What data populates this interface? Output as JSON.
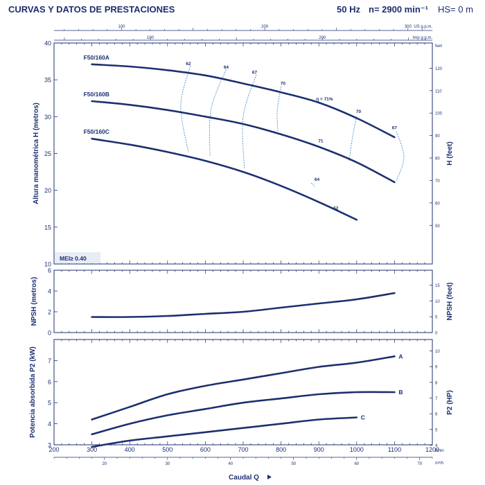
{
  "header": {
    "title": "CURVAS Y DATOS DE PRESTACIONES",
    "frequency": "50 Hz",
    "speed": "n= 2900 min⁻¹",
    "hs": "HS= 0 m"
  },
  "colors": {
    "curve": "#1c2f70",
    "eff": "#4a90c8",
    "frame": "#1c2f70"
  },
  "chart_data": [
    {
      "type": "line",
      "panel": "head",
      "ylabel": "Altura manométrica H (metros)",
      "ylabel_right": "H (feet)",
      "ylim": [
        10,
        40
      ],
      "yticks": [
        10,
        15,
        20,
        25,
        30,
        35,
        40
      ],
      "ylim_right": [
        50,
        125
      ],
      "yticks_right": [
        50,
        60,
        70,
        80,
        90,
        100,
        110,
        120
      ],
      "xlim": [
        200,
        1200
      ],
      "top_axis_us": {
        "label": "US g.p.m.",
        "ticks": [
          100,
          200,
          300
        ]
      },
      "top_axis_imp": {
        "label": "Imp g.p.m.",
        "ticks": [
          100,
          200
        ]
      },
      "annotation": "MEI≥ 0.40",
      "series": [
        {
          "name": "F50/160A",
          "x": [
            300,
            400,
            500,
            600,
            700,
            800,
            900,
            1000,
            1100
          ],
          "y": [
            37.1,
            36.8,
            36.3,
            35.6,
            34.5,
            33.3,
            31.9,
            29.8,
            27.2
          ]
        },
        {
          "name": "F50/160B",
          "x": [
            300,
            400,
            500,
            600,
            700,
            800,
            900,
            1000,
            1100
          ],
          "y": [
            32.1,
            31.6,
            30.9,
            30.0,
            29.0,
            27.6,
            25.9,
            23.8,
            21.1
          ]
        },
        {
          "name": "F50/160C",
          "x": [
            300,
            400,
            500,
            600,
            700,
            800,
            900,
            1000
          ],
          "y": [
            27.0,
            26.2,
            25.2,
            24.0,
            22.5,
            20.6,
            18.4,
            16.0
          ]
        }
      ],
      "efficiency": [
        {
          "label": "62",
          "x": 555,
          "y": 37.0
        },
        {
          "label": "64",
          "x": 655,
          "y": 36.5
        },
        {
          "label": "67",
          "x": 730,
          "y": 35.8
        },
        {
          "label": "70",
          "x": 805,
          "y": 34.3
        },
        {
          "label": "η = 71%",
          "x": 915,
          "y": 32.2
        },
        {
          "label": "70",
          "x": 1005,
          "y": 30.5
        },
        {
          "label": "67",
          "x": 1100,
          "y": 28.3
        },
        {
          "label": "71",
          "x": 905,
          "y": 26.5
        },
        {
          "label": "64",
          "x": 895,
          "y": 21.3
        },
        {
          "label": "62",
          "x": 945,
          "y": 17.4
        }
      ]
    },
    {
      "type": "line",
      "panel": "npsh",
      "ylabel": "NPSH (metros)",
      "ylabel_right": "NPSH (feet)",
      "ylim": [
        0,
        6
      ],
      "yticks": [
        0,
        2,
        4,
        6
      ],
      "yticks_right": [
        0,
        5,
        10,
        15
      ],
      "xlim": [
        200,
        1200
      ],
      "series": [
        {
          "name": "",
          "x": [
            300,
            400,
            500,
            600,
            700,
            800,
            900,
            1000,
            1100
          ],
          "y": [
            1.5,
            1.5,
            1.6,
            1.8,
            2.0,
            2.4,
            2.8,
            3.2,
            3.8
          ]
        }
      ]
    },
    {
      "type": "line",
      "panel": "power",
      "ylabel": "Potencia absorbida P2 (kW)",
      "ylabel_right": "P2 (HP)",
      "ylim": [
        3,
        8
      ],
      "yticks": [
        3,
        4,
        5,
        6,
        7
      ],
      "yticks_right": [
        4,
        5,
        6,
        7,
        8,
        9,
        10
      ],
      "xlim": [
        200,
        1200
      ],
      "xticks": [
        200,
        300,
        400,
        500,
        600,
        700,
        800,
        900,
        1000,
        1100,
        1200
      ],
      "xunit": "l/min",
      "bottom_axis_m3h": {
        "unit": "m³/h",
        "ticks": [
          20,
          30,
          40,
          50,
          60,
          70
        ]
      },
      "xlabel": "Caudal Q",
      "series": [
        {
          "name": "A",
          "x": [
            300,
            400,
            500,
            600,
            700,
            800,
            900,
            1000,
            1100
          ],
          "y": [
            4.2,
            4.8,
            5.4,
            5.8,
            6.1,
            6.4,
            6.7,
            6.9,
            7.2
          ]
        },
        {
          "name": "B",
          "x": [
            300,
            400,
            500,
            600,
            700,
            800,
            900,
            1000,
            1100
          ],
          "y": [
            3.5,
            4.0,
            4.4,
            4.7,
            5.0,
            5.2,
            5.4,
            5.5,
            5.5
          ]
        },
        {
          "name": "C",
          "x": [
            300,
            400,
            500,
            600,
            700,
            800,
            900,
            1000
          ],
          "y": [
            2.9,
            3.2,
            3.4,
            3.6,
            3.8,
            4.0,
            4.2,
            4.3
          ]
        }
      ]
    }
  ]
}
